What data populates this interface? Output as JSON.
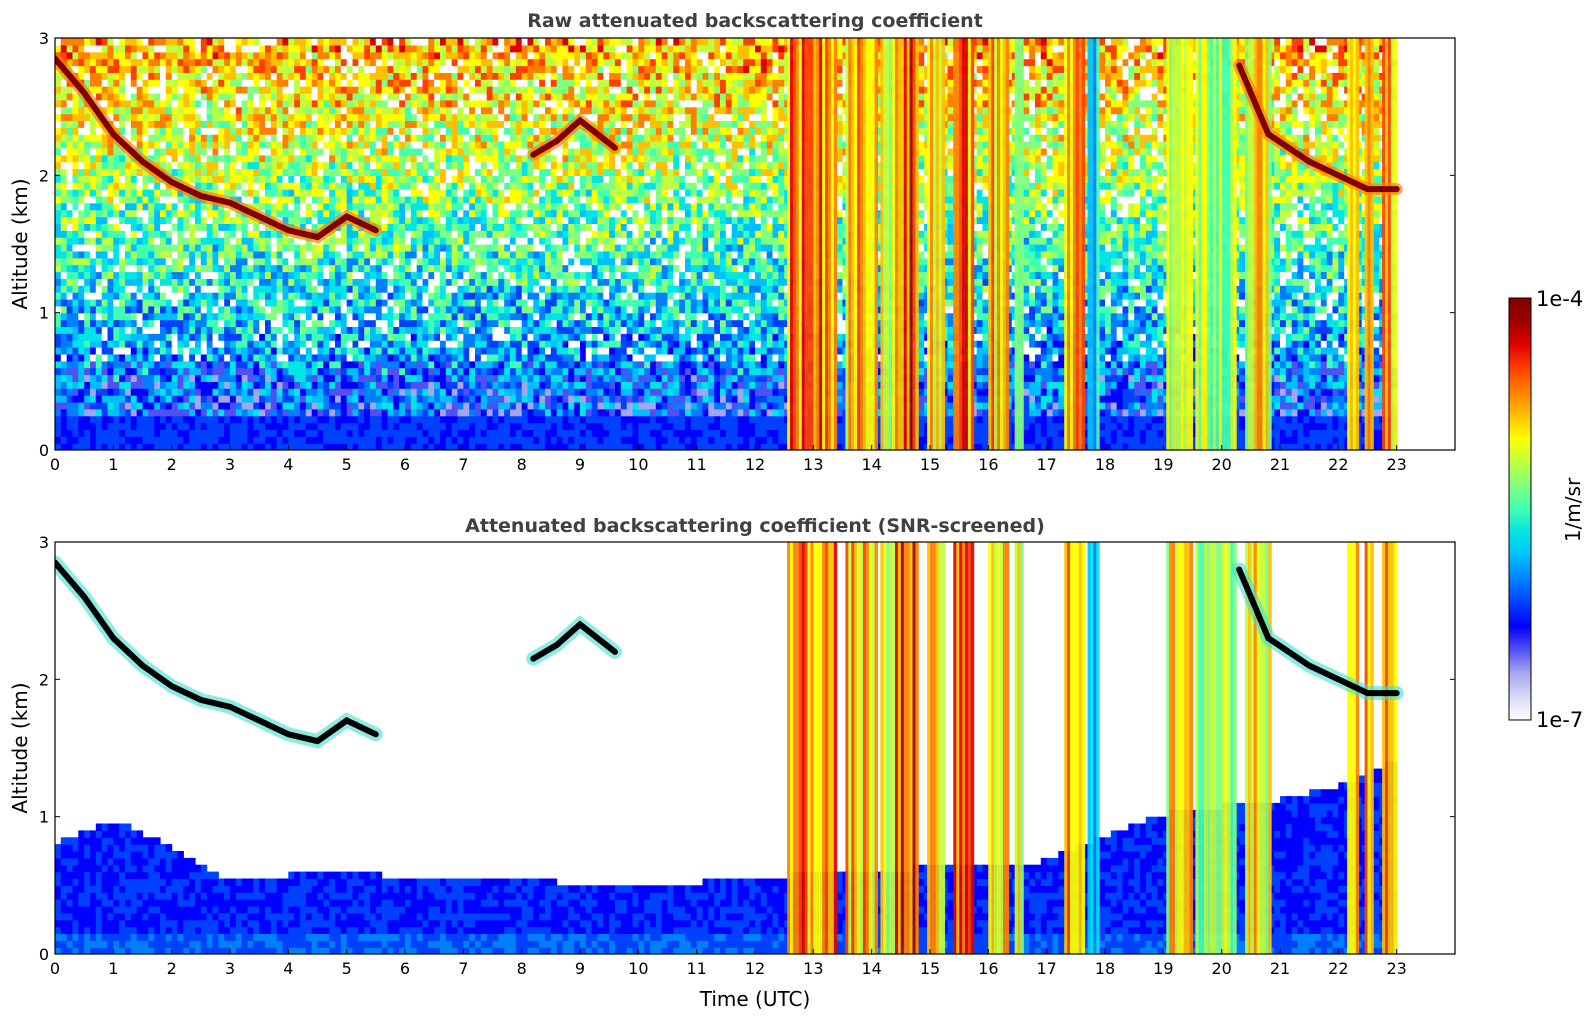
{
  "chart_data": [
    {
      "type": "heatmap",
      "title": "Raw attenuated backscattering coefficient",
      "xlabel": "",
      "ylabel": "Altitude (km)",
      "xlim": [
        0,
        24
      ],
      "ylim": [
        0,
        3
      ],
      "xticks": [
        "0",
        "1",
        "2",
        "3",
        "4",
        "5",
        "6",
        "7",
        "8",
        "9",
        "10",
        "11",
        "12",
        "13",
        "14",
        "15",
        "16",
        "17",
        "18",
        "19",
        "20",
        "21",
        "22",
        "23"
      ],
      "yticks": [
        "0",
        "1",
        "2",
        "3"
      ],
      "data_end_hour": 23,
      "screened": false,
      "layers": [
        {
          "name": "cloud-layer",
          "points": [
            [
              0.0,
              2.85
            ],
            [
              0.5,
              2.6
            ],
            [
              1.0,
              2.3
            ],
            [
              1.5,
              2.1
            ],
            [
              2.0,
              1.95
            ],
            [
              2.5,
              1.85
            ],
            [
              3.0,
              1.8
            ],
            [
              3.5,
              1.7
            ],
            [
              4.0,
              1.6
            ],
            [
              4.5,
              1.55
            ],
            [
              5.0,
              1.7
            ],
            [
              5.5,
              1.6
            ]
          ]
        },
        {
          "name": "cloud-layer-aloft",
          "points": [
            [
              8.2,
              2.15
            ],
            [
              8.6,
              2.25
            ],
            [
              9.0,
              2.4
            ],
            [
              9.6,
              2.2
            ]
          ]
        },
        {
          "name": "cloud-layer-late",
          "points": [
            [
              20.3,
              2.8
            ],
            [
              20.8,
              2.3
            ],
            [
              21.5,
              2.1
            ],
            [
              22.0,
              2.0
            ],
            [
              22.5,
              1.9
            ],
            [
              23.0,
              1.9
            ]
          ]
        }
      ],
      "plumes": [
        {
          "start": 12.55,
          "end": 13.4,
          "intensity": 0.78
        },
        {
          "start": 13.55,
          "end": 14.1,
          "intensity": 0.72
        },
        {
          "start": 14.15,
          "end": 14.4,
          "intensity": 0.6
        },
        {
          "start": 14.4,
          "end": 14.8,
          "intensity": 0.82
        },
        {
          "start": 14.95,
          "end": 15.25,
          "intensity": 0.68
        },
        {
          "start": 15.4,
          "end": 15.75,
          "intensity": 0.8
        },
        {
          "start": 16.0,
          "end": 16.35,
          "intensity": 0.72
        },
        {
          "start": 16.45,
          "end": 16.6,
          "intensity": 0.62
        },
        {
          "start": 17.3,
          "end": 17.65,
          "intensity": 0.74
        },
        {
          "start": 17.7,
          "end": 17.9,
          "intensity": 0.45
        },
        {
          "start": 19.05,
          "end": 19.5,
          "intensity": 0.66
        },
        {
          "start": 19.55,
          "end": 20.25,
          "intensity": 0.6
        },
        {
          "start": 20.4,
          "end": 20.85,
          "intensity": 0.7
        },
        {
          "start": 22.15,
          "end": 22.35,
          "intensity": 0.78
        },
        {
          "start": 22.45,
          "end": 22.6,
          "intensity": 0.7
        },
        {
          "start": 22.75,
          "end": 23.0,
          "intensity": 0.75
        }
      ]
    },
    {
      "type": "heatmap",
      "title": "Attenuated backscattering coefficient (SNR-screened)",
      "xlabel": "Time (UTC)",
      "ylabel": "Altitude (km)",
      "xlim": [
        0,
        24
      ],
      "ylim": [
        0,
        3
      ],
      "xticks": [
        "0",
        "1",
        "2",
        "3",
        "4",
        "5",
        "6",
        "7",
        "8",
        "9",
        "10",
        "11",
        "12",
        "13",
        "14",
        "15",
        "16",
        "17",
        "18",
        "19",
        "20",
        "21",
        "22",
        "23"
      ],
      "yticks": [
        "0",
        "1",
        "2",
        "3"
      ],
      "data_end_hour": 23,
      "screened": true,
      "boundary_layer_top": [
        [
          0,
          0.8
        ],
        [
          1,
          0.95
        ],
        [
          2,
          0.75
        ],
        [
          3,
          0.5
        ],
        [
          4,
          0.55
        ],
        [
          5,
          0.6
        ],
        [
          6,
          0.5
        ],
        [
          7,
          0.5
        ],
        [
          8,
          0.55
        ],
        [
          9,
          0.45
        ],
        [
          10,
          0.45
        ],
        [
          11,
          0.5
        ],
        [
          12,
          0.5
        ],
        [
          12.55,
          0.55
        ],
        [
          16.8,
          0.65
        ],
        [
          18.0,
          0.85
        ],
        [
          19.0,
          1.0
        ],
        [
          21.0,
          1.1
        ],
        [
          22.0,
          1.2
        ],
        [
          23.0,
          1.4
        ]
      ],
      "layers": [
        {
          "name": "cloud-layer",
          "points": [
            [
              0.0,
              2.85
            ],
            [
              0.5,
              2.6
            ],
            [
              1.0,
              2.3
            ],
            [
              1.5,
              2.1
            ],
            [
              2.0,
              1.95
            ],
            [
              2.5,
              1.85
            ],
            [
              3.0,
              1.8
            ],
            [
              3.5,
              1.7
            ],
            [
              4.0,
              1.6
            ],
            [
              4.5,
              1.55
            ],
            [
              5.0,
              1.7
            ],
            [
              5.5,
              1.6
            ]
          ]
        },
        {
          "name": "cloud-layer-aloft",
          "points": [
            [
              8.2,
              2.15
            ],
            [
              8.6,
              2.25
            ],
            [
              9.0,
              2.4
            ],
            [
              9.6,
              2.2
            ]
          ]
        },
        {
          "name": "cloud-layer-late",
          "points": [
            [
              20.3,
              2.8
            ],
            [
              20.8,
              2.3
            ],
            [
              21.5,
              2.1
            ],
            [
              22.0,
              2.0
            ],
            [
              22.5,
              1.9
            ],
            [
              23.0,
              1.9
            ]
          ]
        }
      ],
      "plumes": [
        {
          "start": 12.55,
          "end": 13.4,
          "intensity": 0.78
        },
        {
          "start": 13.55,
          "end": 14.1,
          "intensity": 0.72
        },
        {
          "start": 14.15,
          "end": 14.4,
          "intensity": 0.6
        },
        {
          "start": 14.4,
          "end": 14.8,
          "intensity": 0.82
        },
        {
          "start": 14.95,
          "end": 15.25,
          "intensity": 0.68
        },
        {
          "start": 15.4,
          "end": 15.75,
          "intensity": 0.8
        },
        {
          "start": 16.0,
          "end": 16.35,
          "intensity": 0.72
        },
        {
          "start": 16.45,
          "end": 16.6,
          "intensity": 0.62
        },
        {
          "start": 17.3,
          "end": 17.65,
          "intensity": 0.74
        },
        {
          "start": 17.7,
          "end": 17.9,
          "intensity": 0.45
        },
        {
          "start": 19.05,
          "end": 19.5,
          "intensity": 0.66
        },
        {
          "start": 19.55,
          "end": 20.25,
          "intensity": 0.6
        },
        {
          "start": 20.4,
          "end": 20.85,
          "intensity": 0.7
        },
        {
          "start": 22.15,
          "end": 22.35,
          "intensity": 0.78
        },
        {
          "start": 22.45,
          "end": 22.6,
          "intensity": 0.7
        },
        {
          "start": 22.75,
          "end": 23.0,
          "intensity": 0.75
        }
      ]
    }
  ],
  "colorbar": {
    "label": "1/m/sr",
    "max_label": "1e-4",
    "min_label": "1e-7",
    "scale": "log",
    "range": [
      1e-07,
      0.0001
    ],
    "colormap": [
      "#ffffff",
      "#d9d9f5",
      "#a6a6f0",
      "#5050f5",
      "#0000ff",
      "#0040ff",
      "#0080ff",
      "#00bfff",
      "#00e5e5",
      "#40ffb0",
      "#80ff80",
      "#c0ff40",
      "#ffff00",
      "#ffc000",
      "#ff8000",
      "#ff4000",
      "#e00000",
      "#a00000",
      "#800000"
    ]
  }
}
